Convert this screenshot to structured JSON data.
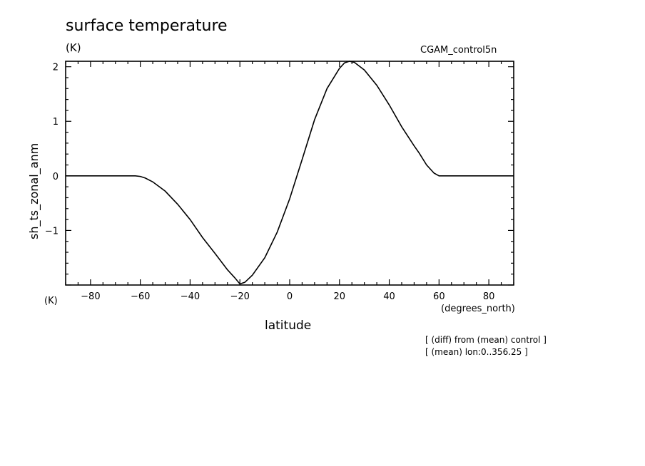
{
  "header": {
    "title": "surface temperature",
    "units": "(K)",
    "run_name": "CGAM_control5n"
  },
  "axes": {
    "y_units": "(K)",
    "x_units": "(degrees_north)"
  },
  "notes": {
    "line1": "[ (diff) from (mean) control ]",
    "line2": "[ (mean) lon:0..356.25 ]"
  },
  "chart_data": {
    "type": "line",
    "xlabel": "latitude",
    "ylabel": "sh_ts_zonal_anm",
    "xlim": [
      -90,
      90
    ],
    "ylim": [
      -2,
      2.1
    ],
    "x_ticks": [
      -80,
      -60,
      -40,
      -20,
      0,
      20,
      40,
      60,
      80
    ],
    "y_ticks": [
      -1,
      0,
      1,
      2
    ],
    "series": [
      {
        "x": [
          -90,
          -80,
          -70,
          -62,
          -60,
          -58,
          -55,
          -50,
          -45,
          -40,
          -35,
          -30,
          -25,
          -22,
          -20,
          -18,
          -15,
          -10,
          -5,
          0,
          5,
          10,
          15,
          20,
          22,
          24,
          26,
          30,
          35,
          40,
          45,
          50,
          52,
          55,
          58,
          60,
          70,
          80,
          90
        ],
        "y": [
          0,
          0,
          0,
          0,
          -0.01,
          -0.04,
          -0.11,
          -0.28,
          -0.52,
          -0.8,
          -1.13,
          -1.42,
          -1.72,
          -1.87,
          -1.98,
          -1.95,
          -1.82,
          -1.5,
          -1.03,
          -0.42,
          0.3,
          1.03,
          1.6,
          1.97,
          2.07,
          2.1,
          2.08,
          1.94,
          1.66,
          1.3,
          0.9,
          0.55,
          0.42,
          0.2,
          0.05,
          0,
          0,
          0,
          0
        ]
      }
    ]
  }
}
